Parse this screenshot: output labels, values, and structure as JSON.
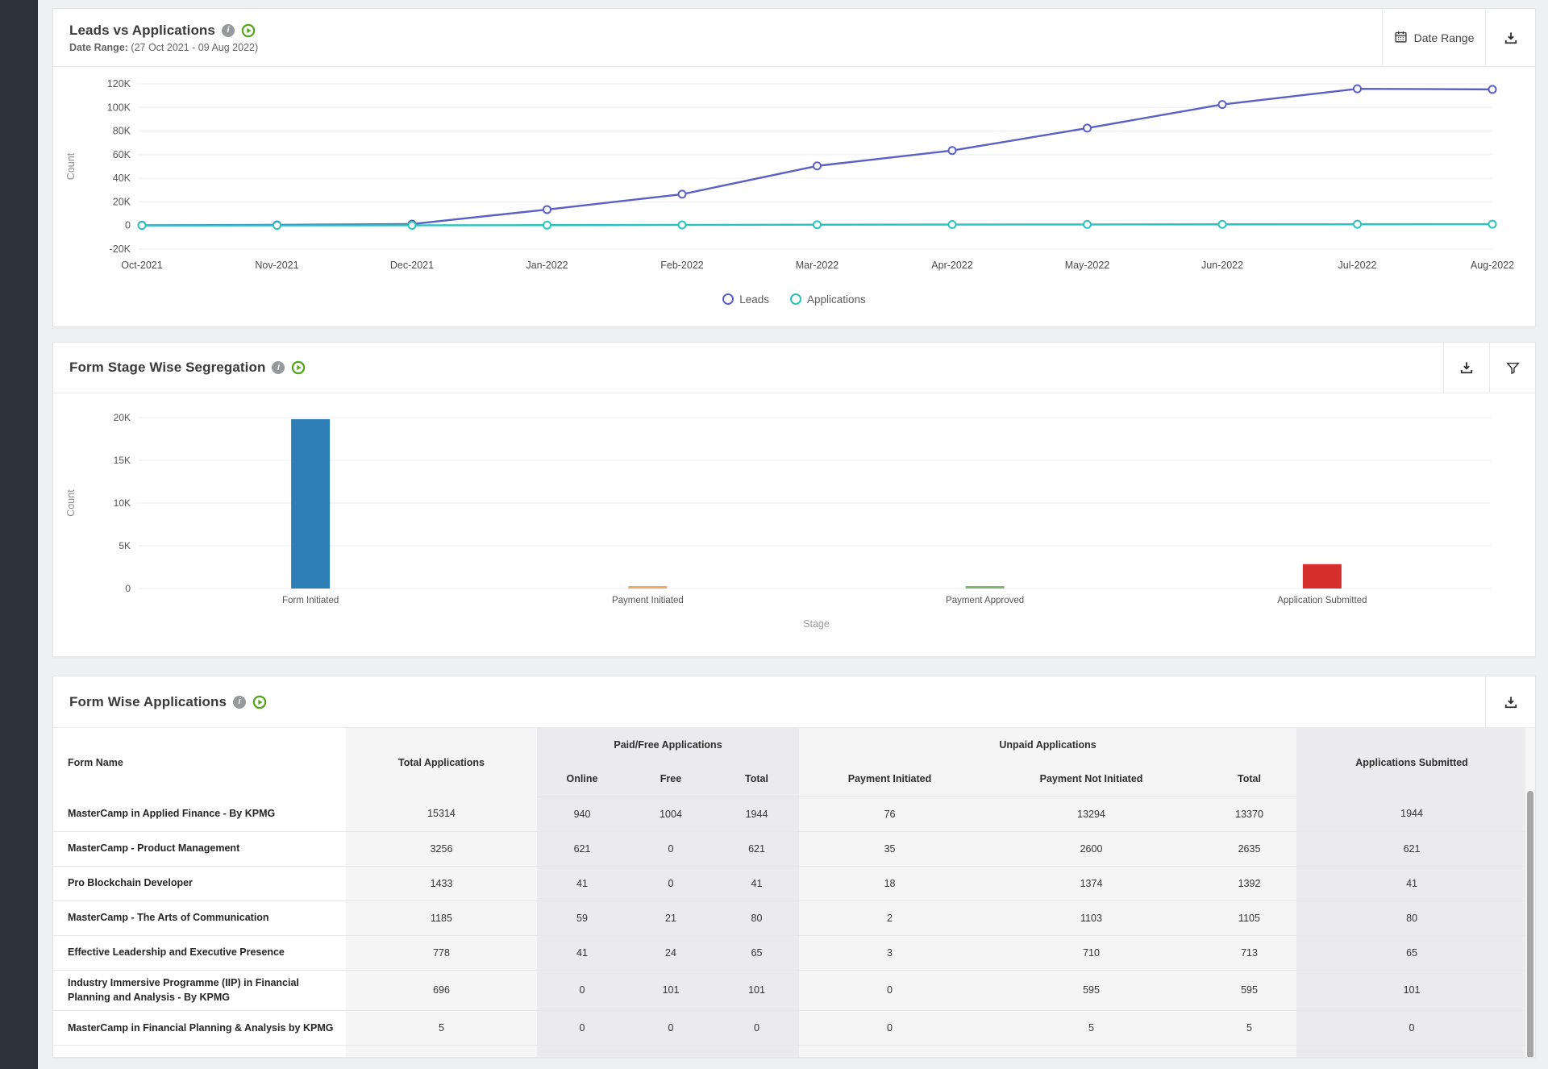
{
  "page": {
    "background": "#eef0f2",
    "sidebar_color": "#2d323c"
  },
  "leads_vs_applications": {
    "title": "Leads vs Applications",
    "subtitle_label": "Date Range:",
    "subtitle_value": " (27 Oct 2021 - 09 Aug 2022)",
    "date_range_button": "Date Range",
    "icons": [
      "info-icon",
      "play-icon",
      "calendar-icon",
      "download-icon"
    ],
    "legend": [
      {
        "label": "Leads",
        "color": "#5b60c6"
      },
      {
        "label": "Applications",
        "color": "#29c4bb"
      }
    ]
  },
  "form_stage_segregation": {
    "title": "Form Stage Wise Segregation",
    "icons": [
      "info-icon",
      "play-icon",
      "download-icon",
      "filter-icon"
    ]
  },
  "form_wise_applications": {
    "title": "Form Wise Applications",
    "icons": [
      "info-icon",
      "play-icon",
      "download-icon"
    ],
    "table": {
      "header_groups": {
        "form_name": "Form Name",
        "total_applications": "Total Applications",
        "paid_free": "Paid/Free Applications",
        "unpaid": "Unpaid Applications",
        "applications_submitted": "Applications Submitted"
      },
      "sub_columns": {
        "paid_free": [
          "Online",
          "Free",
          "Total"
        ],
        "unpaid": [
          "Payment Initiated",
          "Payment Not Initiated",
          "Total"
        ]
      },
      "rows": [
        {
          "form_name": "MasterCamp in Applied Finance - By KPMG",
          "values": [
            15314,
            940,
            1004,
            1944,
            76,
            13294,
            13370,
            1944
          ]
        },
        {
          "form_name": "MasterCamp - Product Management",
          "values": [
            3256,
            621,
            0,
            621,
            35,
            2600,
            2635,
            621
          ]
        },
        {
          "form_name": "Pro Blockchain Developer",
          "values": [
            1433,
            41,
            0,
            41,
            18,
            1374,
            1392,
            41
          ]
        },
        {
          "form_name": "MasterCamp - The Arts of Communication",
          "values": [
            1185,
            59,
            21,
            80,
            2,
            1103,
            1105,
            80
          ]
        },
        {
          "form_name": "Effective Leadership and Executive Presence",
          "values": [
            778,
            41,
            24,
            65,
            3,
            710,
            713,
            65
          ]
        },
        {
          "form_name": "Industry Immersive Programme (IIP) in Financial Planning and Analysis - By KPMG",
          "values": [
            696,
            0,
            101,
            101,
            0,
            595,
            595,
            101
          ]
        },
        {
          "form_name": "MasterCamp in Financial Planning & Analysis by KPMG",
          "values": [
            5,
            0,
            0,
            0,
            0,
            5,
            5,
            0
          ]
        }
      ]
    }
  },
  "chart_data": [
    {
      "type": "line",
      "title": "Leads vs Applications",
      "x": [
        "Oct-2021",
        "Nov-2021",
        "Dec-2021",
        "Jan-2022",
        "Feb-2022",
        "Mar-2022",
        "Apr-2022",
        "May-2022",
        "Jun-2022",
        "Jul-2022",
        "Aug-2022"
      ],
      "series": [
        {
          "name": "Leads",
          "color": "#5b60c6",
          "values": [
            200,
            500,
            1200,
            13500,
            26500,
            50500,
            63500,
            82500,
            102500,
            115800,
            115300
          ]
        },
        {
          "name": "Applications",
          "color": "#29c4bb",
          "values": [
            30,
            90,
            180,
            320,
            500,
            680,
            800,
            900,
            1000,
            1080,
            1120
          ]
        }
      ],
      "ylabel": "Count",
      "ylim": [
        -20000,
        120000
      ],
      "yticks": [
        120000,
        100000,
        80000,
        60000,
        40000,
        20000,
        0,
        -20000
      ],
      "grid": true,
      "legend_position": "bottom"
    },
    {
      "type": "bar",
      "title": "Form Stage Wise Segregation",
      "categories": [
        "Form Initiated",
        "Payment Initiated",
        "Payment Approved",
        "Application Submitted"
      ],
      "values": [
        19815,
        134,
        200,
        2852
      ],
      "colors": [
        "#2d7db6",
        "#f3a963",
        "#7cb96e",
        "#d62d2d"
      ],
      "xlabel": "Stage",
      "ylabel": "Count",
      "ylim": [
        0,
        20000
      ],
      "yticks": [
        20000,
        15000,
        10000,
        5000,
        0
      ],
      "grid": true
    }
  ]
}
